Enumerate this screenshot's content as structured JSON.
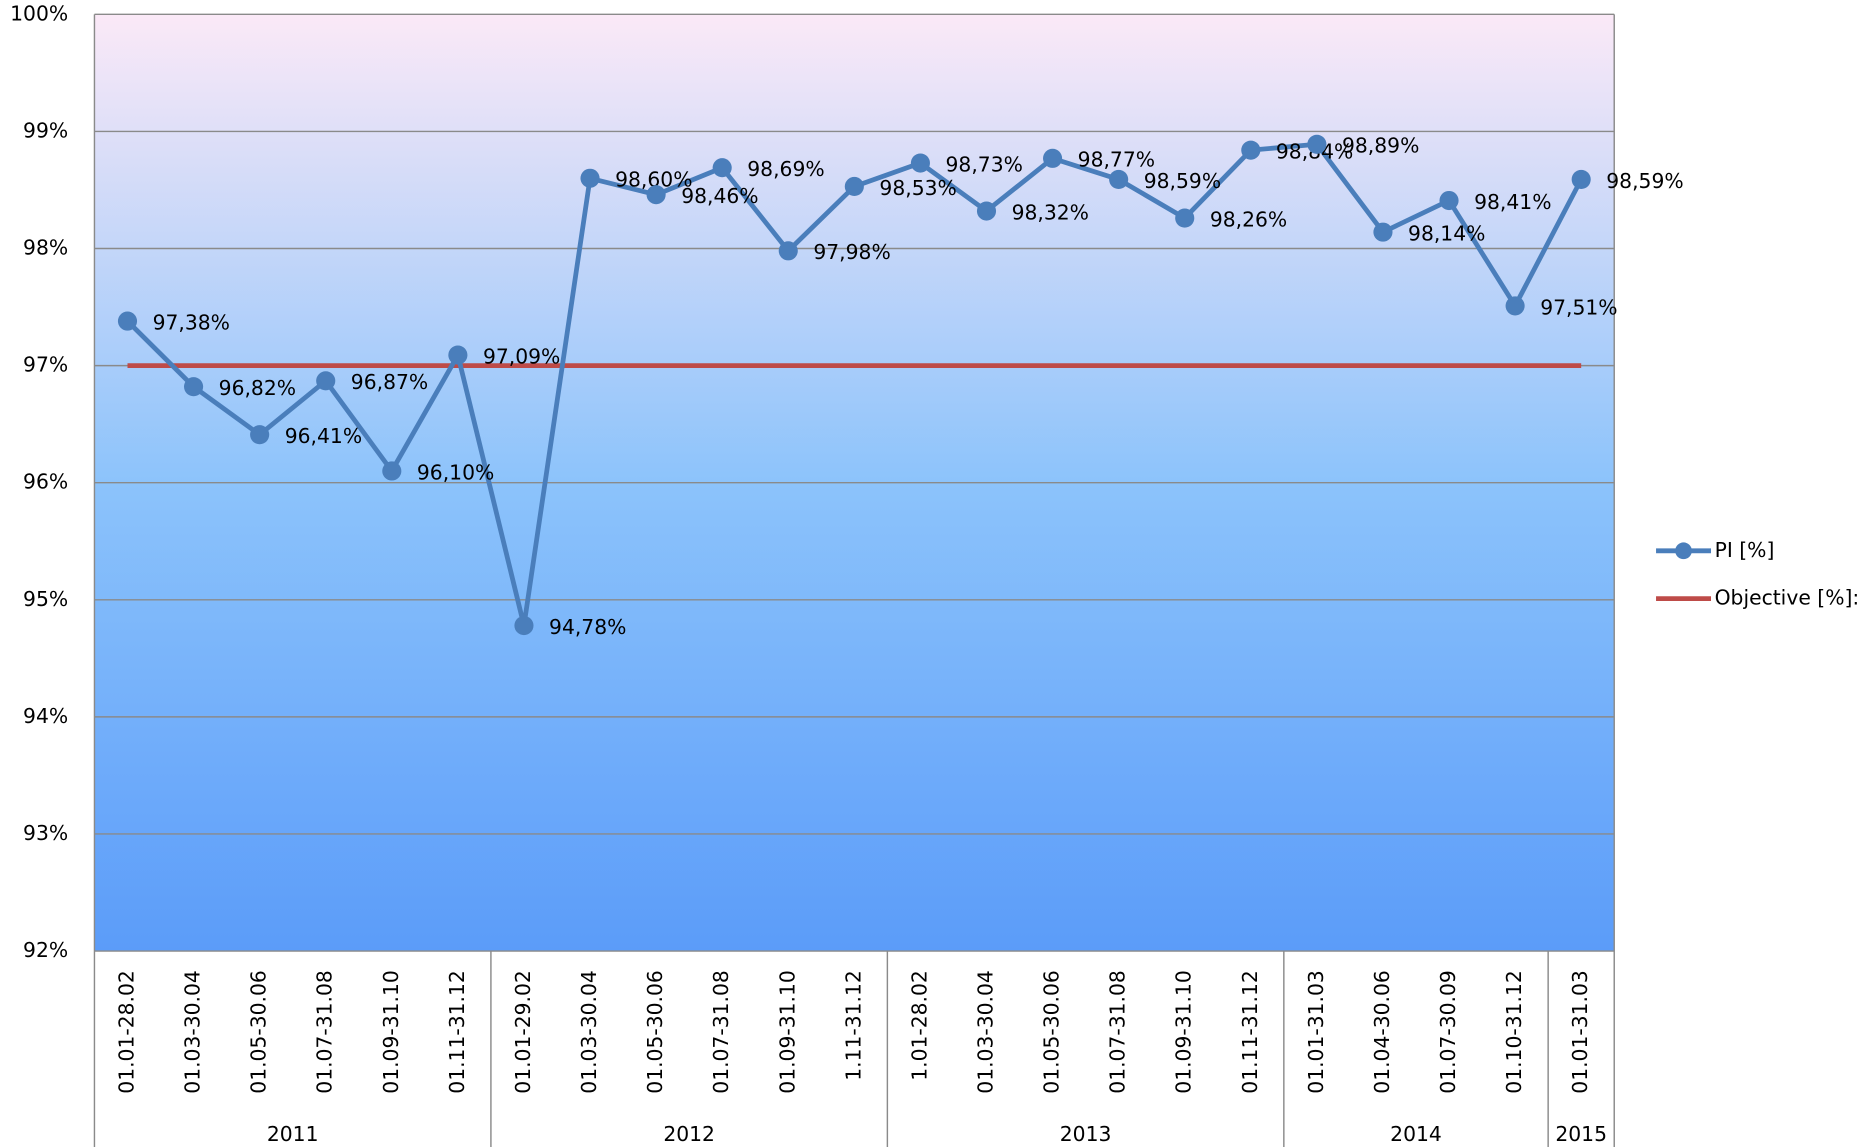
{
  "chart_data": {
    "type": "line",
    "categories": [
      "01.01-28.02",
      "01.03-30.04",
      "01.05-30.06",
      "01.07-31.08",
      "01.09-31.10",
      "01.11-31.12",
      "01.01-29.02",
      "01.03-30.04",
      "01.05-30.06",
      "01.07-31.08",
      "01.09-31.10",
      "1.11-31.12",
      "1.01-28.02",
      "01.03-30.04",
      "01.05-30.06",
      "01.07-31.08",
      "01.09-31.10",
      "01.11-31.12",
      "01.01-31.03",
      "01.04-30.06",
      "01.07-30.09",
      "01.10-31.12",
      "01.01-31.03"
    ],
    "groups": [
      {
        "label": "2011",
        "count": 6
      },
      {
        "label": "2012",
        "count": 6
      },
      {
        "label": "2013",
        "count": 6
      },
      {
        "label": "2014",
        "count": 4
      },
      {
        "label": "2015",
        "count": 1
      }
    ],
    "series": [
      {
        "name": "PI [%]",
        "color": "#4a7ebb",
        "markers": true,
        "values": [
          97.38,
          96.82,
          96.41,
          96.87,
          96.1,
          97.09,
          94.78,
          98.6,
          98.46,
          98.69,
          97.98,
          98.53,
          98.73,
          98.32,
          98.77,
          98.59,
          98.26,
          98.84,
          98.89,
          98.14,
          98.41,
          97.51,
          98.59
        ],
        "value_labels": [
          "97,38%",
          "96,82%",
          "96,41%",
          "96,87%",
          "96,10%",
          "97,09%",
          "94,78%",
          "98,60%",
          "98,46%",
          "98,69%",
          "97,98%",
          "98,53%",
          "98,73%",
          "98,32%",
          "98,77%",
          "98,59%",
          "98,26%",
          "98,84%",
          "98,89%",
          "98,14%",
          "98,41%",
          "97,51%",
          "98,59%"
        ]
      },
      {
        "name": "Objective [%]:",
        "color": "#be4b48",
        "markers": false,
        "values": [
          97,
          97,
          97,
          97,
          97,
          97,
          97,
          97,
          97,
          97,
          97,
          97,
          97,
          97,
          97,
          97,
          97,
          97,
          97,
          97,
          97,
          97,
          97
        ]
      }
    ],
    "ylim": [
      92,
      100
    ],
    "yticks": [
      {
        "value": 92,
        "label": "92%"
      },
      {
        "value": 93,
        "label": "93%"
      },
      {
        "value": 94,
        "label": "94%"
      },
      {
        "value": 95,
        "label": "95%"
      },
      {
        "value": 96,
        "label": "96%"
      },
      {
        "value": 97,
        "label": "97%"
      },
      {
        "value": 98,
        "label": "98%"
      },
      {
        "value": 99,
        "label": "99%"
      },
      {
        "value": 100,
        "label": "100%"
      }
    ],
    "grid": true,
    "legend": "right"
  }
}
